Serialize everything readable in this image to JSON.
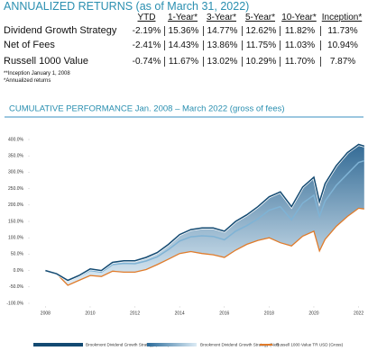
{
  "table": {
    "title": "ANNUALIZED RETURNS (as of March 31, 2022)",
    "columns": [
      "YTD",
      "1-Year*",
      "3-Year*",
      "5-Year*",
      "10-Year*",
      "Inception*"
    ],
    "rows": [
      {
        "label": "Dividend Growth Strategy",
        "values": [
          "-2.19%",
          "15.36%",
          "14.77%",
          "12.62%",
          "11.82%",
          "11.73%"
        ]
      },
      {
        "label": "Net of Fees",
        "values": [
          "-2.41%",
          "14.43%",
          "13.86%",
          "11.75%",
          "11.03%",
          "10.94%"
        ]
      },
      {
        "label": "Russell 1000 Value",
        "values": [
          "-0.74%",
          "11.67%",
          "13.02%",
          "10.29%",
          "11.70%",
          "7.87%"
        ]
      }
    ],
    "notes": [
      "**Inception January 1, 2008",
      "*Annualized returns"
    ]
  },
  "chart_data": {
    "type": "line",
    "title": "CUMULATIVE PERFORMANCE Jan. 2008 – March 2022 (gross of fees)",
    "x": [
      2008,
      2008.5,
      2009,
      2009.5,
      2010,
      2010.5,
      2011,
      2011.5,
      2012,
      2012.5,
      2013,
      2013.5,
      2014,
      2014.5,
      2015,
      2015.5,
      2016,
      2016.5,
      2017,
      2017.5,
      2018,
      2018.5,
      2019,
      2019.5,
      2020,
      2020.25,
      2020.5,
      2021,
      2021.5,
      2022,
      2022.25
    ],
    "series": [
      {
        "name": "Brookmont Dividend Growth Strategy (Gross)",
        "color": "#134a72",
        "values": [
          0,
          -10,
          -30,
          -15,
          5,
          0,
          25,
          30,
          30,
          40,
          55,
          80,
          110,
          125,
          130,
          130,
          120,
          150,
          170,
          195,
          225,
          240,
          195,
          255,
          285,
          210,
          265,
          320,
          360,
          385,
          380
        ]
      },
      {
        "name": "Brookmont Dividend Growth Strategy (Net)",
        "color": "#7fb3d5",
        "values": [
          0,
          -11,
          -32,
          -18,
          0,
          -5,
          18,
          22,
          21,
          29,
          42,
          64,
          90,
          103,
          106,
          104,
          94,
          120,
          137,
          158,
          184,
          195,
          155,
          206,
          230,
          165,
          212,
          260,
          295,
          330,
          335
        ]
      },
      {
        "name": "Russell 1000 Value TR USD (Gross)",
        "color": "#e07b2a",
        "values": [
          0,
          -10,
          -45,
          -30,
          -15,
          -18,
          -2,
          -5,
          -5,
          3,
          18,
          35,
          52,
          58,
          52,
          48,
          40,
          62,
          80,
          92,
          100,
          85,
          75,
          105,
          120,
          60,
          95,
          135,
          165,
          190,
          188
        ]
      }
    ],
    "xlim": [
      2007.3,
      2022.3
    ],
    "xticks": [
      2008,
      2010,
      2012,
      2014,
      2016,
      2018,
      2020,
      2022
    ],
    "ylim": [
      -100,
      400
    ],
    "yticks": [
      {
        "value": -100,
        "label": "-100.0%"
      },
      {
        "value": -50,
        "label": "-50.0%"
      },
      {
        "value": 0,
        "label": "0.0%"
      },
      {
        "value": 50,
        "label": "50.0%"
      },
      {
        "value": 100,
        "label": "100.0%"
      },
      {
        "value": 150,
        "label": "150.0%"
      },
      {
        "value": 200,
        "label": "200.0%"
      },
      {
        "value": 250,
        "label": "250.0%"
      },
      {
        "value": 300,
        "label": "300.0%"
      },
      {
        "value": 350,
        "label": "350.0%"
      },
      {
        "value": 400,
        "label": "400.0%"
      }
    ],
    "grid": false
  }
}
